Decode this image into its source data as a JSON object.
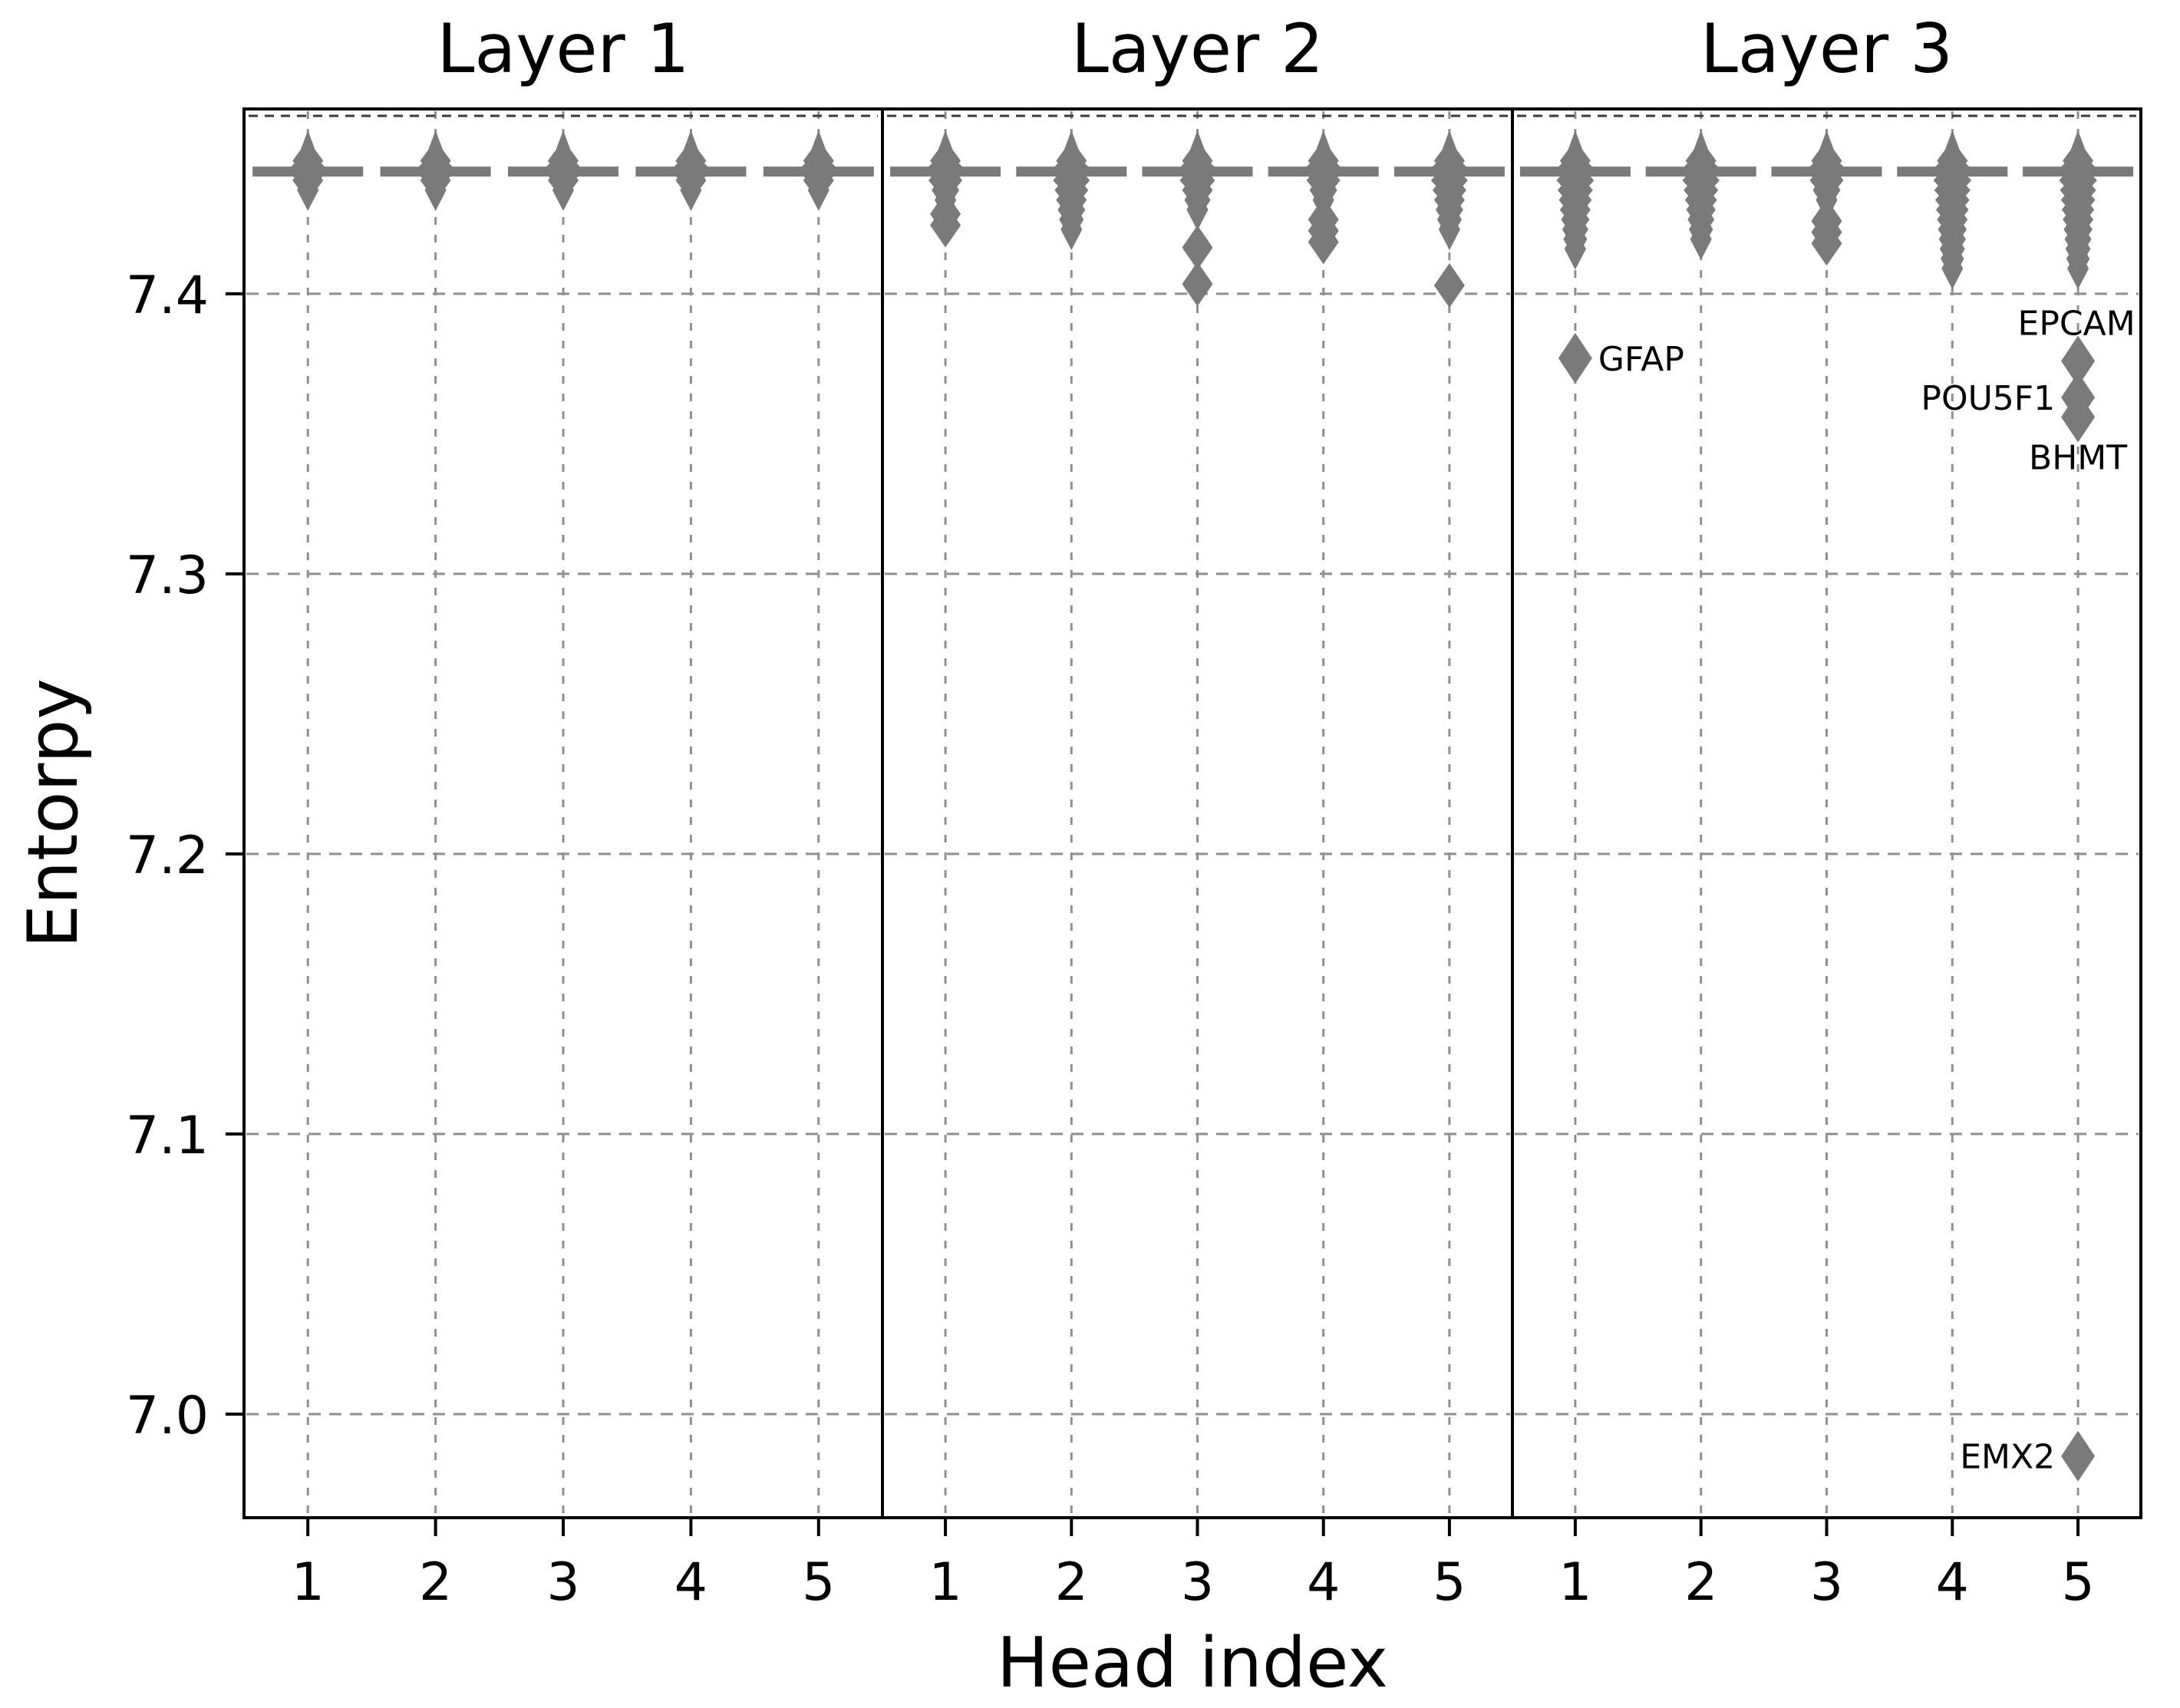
{
  "chart_data": {
    "type": "scatter",
    "marker": "diamond",
    "title": "",
    "xlabel": "Head index",
    "ylabel": "Entorpy",
    "panel_titles": [
      "Layer 1",
      "Layer 2",
      "Layer 3"
    ],
    "x_tick_labels": [
      "1",
      "2",
      "3",
      "4",
      "5"
    ],
    "y_tick_labels": [
      "7.4",
      "7.3",
      "7.2",
      "7.1",
      "7.0"
    ],
    "y_tick_values": [
      7.4,
      7.3,
      7.2,
      7.1,
      7.0
    ],
    "ylim": [
      6.963,
      7.466
    ],
    "grid": true,
    "legend": "none",
    "mode_value": 7.4435,
    "colors": {
      "marker": "#7a7a7a",
      "grid": "#8f8f8f",
      "axis": "#000000",
      "top_dash": "#3a3a3a",
      "text": "#000000",
      "background": "#ffffff"
    },
    "panels": [
      {
        "title": "Layer 1",
        "heads": [
          {
            "head": "1",
            "mode": 7.4435,
            "cluster_top": 7.451,
            "cluster_bottom": 7.436,
            "extra_points": [],
            "outliers": []
          },
          {
            "head": "2",
            "mode": 7.4435,
            "cluster_top": 7.451,
            "cluster_bottom": 7.436,
            "extra_points": [],
            "outliers": []
          },
          {
            "head": "3",
            "mode": 7.4435,
            "cluster_top": 7.451,
            "cluster_bottom": 7.436,
            "extra_points": [],
            "outliers": []
          },
          {
            "head": "4",
            "mode": 7.4435,
            "cluster_top": 7.451,
            "cluster_bottom": 7.436,
            "extra_points": [],
            "outliers": []
          },
          {
            "head": "5",
            "mode": 7.4435,
            "cluster_top": 7.451,
            "cluster_bottom": 7.436,
            "extra_points": [],
            "outliers": []
          }
        ]
      },
      {
        "title": "Layer 2",
        "heads": [
          {
            "head": "1",
            "mode": 7.4435,
            "cluster_top": 7.451,
            "cluster_bottom": 7.433,
            "extra_points": [
              7.4285,
              7.4245
            ],
            "outliers": []
          },
          {
            "head": "2",
            "mode": 7.4435,
            "cluster_top": 7.451,
            "cluster_bottom": 7.4195,
            "extra_points": [],
            "outliers": []
          },
          {
            "head": "3",
            "mode": 7.4435,
            "cluster_top": 7.451,
            "cluster_bottom": 7.4285,
            "extra_points": [
              7.4165,
              7.4035
            ],
            "outliers": []
          },
          {
            "head": "4",
            "mode": 7.4435,
            "cluster_top": 7.451,
            "cluster_bottom": 7.4315,
            "extra_points": [
              7.4265,
              7.4225,
              7.4185
            ],
            "outliers": []
          },
          {
            "head": "5",
            "mode": 7.4435,
            "cluster_top": 7.451,
            "cluster_bottom": 7.4225,
            "extra_points": [
              7.403
            ],
            "outliers": []
          }
        ]
      },
      {
        "title": "Layer 3",
        "heads": [
          {
            "head": "1",
            "mode": 7.4435,
            "cluster_top": 7.451,
            "cluster_bottom": 7.4155,
            "extra_points": [],
            "outliers": [
              {
                "label": "GFAP",
                "value": 7.377,
                "label_side": "right"
              }
            ]
          },
          {
            "head": "2",
            "mode": 7.4435,
            "cluster_top": 7.451,
            "cluster_bottom": 7.4185,
            "extra_points": [],
            "outliers": []
          },
          {
            "head": "3",
            "mode": 7.4435,
            "cluster_top": 7.451,
            "cluster_bottom": 7.4305,
            "extra_points": [
              7.426,
              7.422,
              7.418
            ],
            "outliers": []
          },
          {
            "head": "4",
            "mode": 7.4435,
            "cluster_top": 7.451,
            "cluster_bottom": 7.406,
            "extra_points": [],
            "outliers": []
          },
          {
            "head": "5",
            "mode": 7.4435,
            "cluster_top": 7.451,
            "cluster_bottom": 7.4085,
            "extra_points": [],
            "outliers": [
              {
                "label": "EPCAM",
                "value": 7.376,
                "label_side": "above"
              },
              {
                "label": "POU5F1",
                "value": 7.363,
                "label_side": "left"
              },
              {
                "label": "BHMT",
                "value": 7.356,
                "label_side": "below"
              },
              {
                "label": "EMX2",
                "value": 6.985,
                "label_side": "left"
              }
            ]
          }
        ]
      }
    ]
  }
}
